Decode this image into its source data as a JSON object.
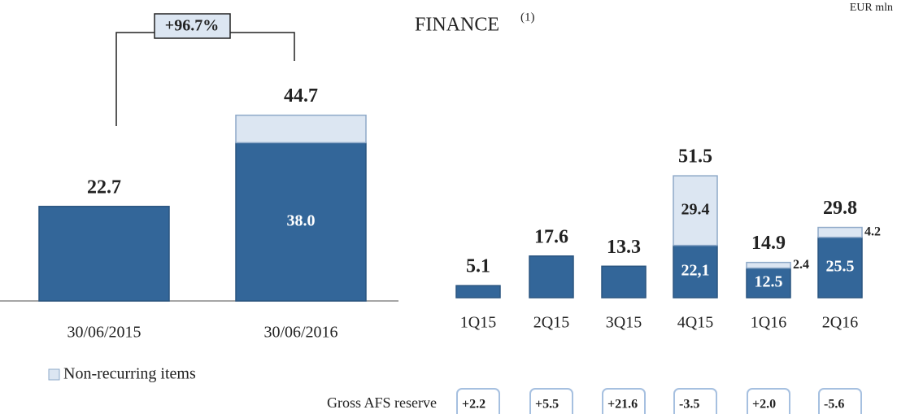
{
  "chart_data": [
    {
      "type": "bar",
      "stacked": true,
      "annotation": "+96.7%",
      "categories": [
        "30/06/2015",
        "30/06/2016"
      ],
      "series": [
        {
          "color": "#336699",
          "values": [
            22.7,
            38.0
          ],
          "value_labels": [
            null,
            "38.0"
          ]
        },
        {
          "name": "Non-recurring items",
          "color": "#dce6f2",
          "values": [
            null,
            6.6
          ]
        }
      ],
      "totals": [
        22.7,
        44.7
      ]
    },
    {
      "type": "bar",
      "stacked": true,
      "title": "FINANCE",
      "title_note": "(1)",
      "unit": "EUR mln",
      "categories": [
        "1Q15",
        "2Q15",
        "3Q15",
        "4Q15",
        "1Q16",
        "2Q16"
      ],
      "series": [
        {
          "color": "#336699",
          "values": [
            5.1,
            17.6,
            13.3,
            22.1,
            12.5,
            25.5
          ],
          "value_labels": [
            null,
            null,
            null,
            "22,1",
            "12.5",
            "25.5"
          ]
        },
        {
          "color": "#dce6f2",
          "values": [
            null,
            null,
            null,
            29.4,
            2.4,
            4.2
          ],
          "value_labels": [
            null,
            null,
            null,
            "29.4",
            "2.4",
            "4.2"
          ]
        }
      ],
      "totals": [
        5.1,
        17.6,
        13.3,
        51.5,
        14.9,
        29.8
      ],
      "afs_reserve": {
        "label": "Gross AFS reserve",
        "values": [
          2.2,
          5.5,
          21.6,
          -3.5,
          2.0,
          -5.6
        ],
        "value_labels": [
          "+2.2",
          "+5.5",
          "+21.6",
          "-3.5",
          "+2.0",
          "-5.6"
        ]
      }
    }
  ]
}
